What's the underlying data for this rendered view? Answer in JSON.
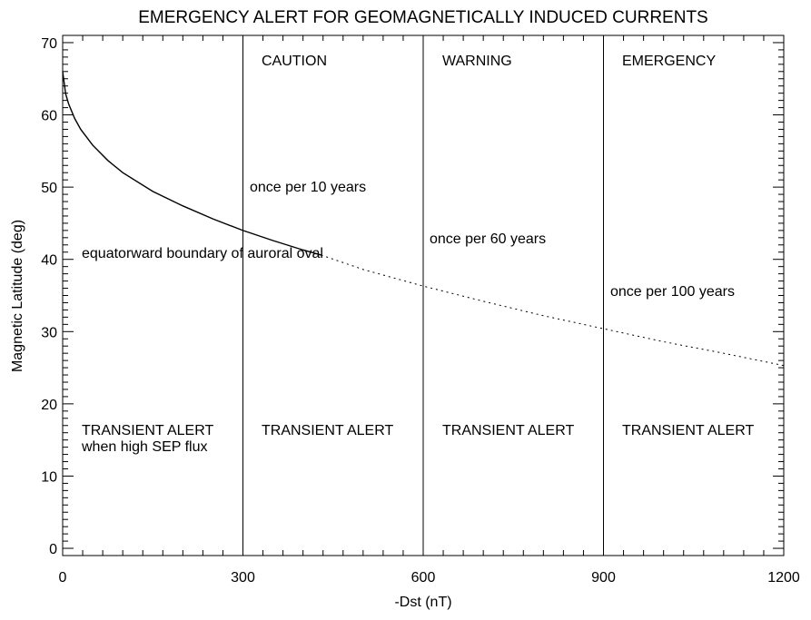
{
  "chart_data": {
    "type": "line",
    "title": "EMERGENCY ALERT FOR GEOMAGNETICALLY INDUCED CURRENTS",
    "xlabel": "-Dst (nT)",
    "ylabel": "Magnetic Latitude (deg)",
    "xlim": [
      0,
      1200
    ],
    "ylim": [
      -1,
      71
    ],
    "xticks": [
      0,
      300,
      600,
      900,
      1200
    ],
    "yticks": [
      0,
      10,
      20,
      30,
      40,
      50,
      60,
      70
    ],
    "grid": false,
    "thresholds": [
      300,
      600,
      900
    ],
    "series": [
      {
        "style": "solid",
        "x": [
          0,
          5,
          10,
          20,
          30,
          50,
          75,
          100,
          150,
          200,
          250,
          300,
          350,
          400,
          430
        ],
        "y": [
          66,
          62.9,
          61.5,
          59.5,
          58.0,
          55.8,
          53.7,
          52.0,
          49.4,
          47.4,
          45.6,
          44.0,
          42.6,
          41.3,
          40.6
        ]
      },
      {
        "style": "dotted",
        "x": [
          430,
          500,
          600,
          700,
          800,
          900,
          1000,
          1100,
          1200
        ],
        "y": [
          40.6,
          38.6,
          36.3,
          34.2,
          32.2,
          30.4,
          28.6,
          27.0,
          25.3
        ]
      }
    ],
    "annotations": {
      "zones": [
        "CAUTION",
        "WARNING",
        "EMERGENCY"
      ],
      "frequencies": [
        "once per 10 years",
        "once per 60 years",
        "once per 100 years"
      ],
      "boundary": "equatorward boundary of auroral oval",
      "transient": [
        "TRANSIENT ALERT",
        "TRANSIENT ALERT",
        "TRANSIENT ALERT",
        "TRANSIENT ALERT"
      ],
      "transient_note": "when high SEP flux"
    }
  }
}
